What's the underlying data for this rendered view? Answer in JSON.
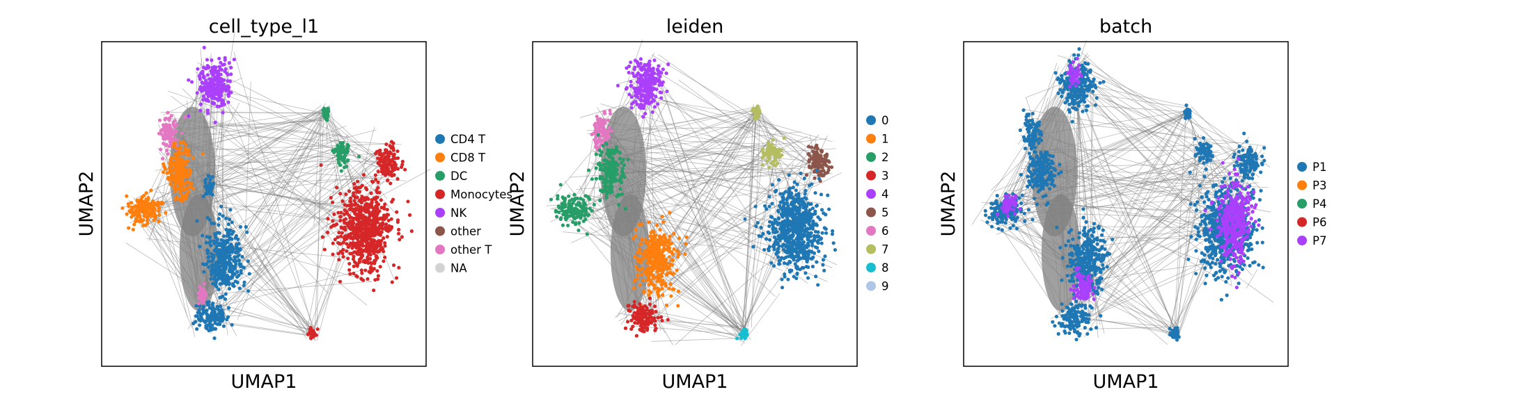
{
  "chart_data": [
    {
      "type": "scatter",
      "title": "cell_type_l1",
      "xlabel": "UMAP1",
      "ylabel": "UMAP2",
      "legend": {
        "position": "right",
        "items": [
          {
            "label": "CD4 T",
            "color": "#1f77b4"
          },
          {
            "label": "CD8 T",
            "color": "#ff7f0e"
          },
          {
            "label": "DC",
            "color": "#279e68"
          },
          {
            "label": "Monocytes",
            "color": "#d62728"
          },
          {
            "label": "NK",
            "color": "#aa40fc"
          },
          {
            "label": "other",
            "color": "#8c564b"
          },
          {
            "label": "other T",
            "color": "#e377c2"
          },
          {
            "label": "NA",
            "color": "#d3d3d3"
          }
        ]
      },
      "clusters": [
        {
          "group": "NK",
          "blobs": [
            [
              0.35,
              0.13,
              0.052,
              0.075
            ]
          ]
        },
        {
          "group": "other T",
          "blobs": [
            [
              0.21,
              0.28,
              0.028,
              0.055
            ]
          ]
        },
        {
          "group": "CD8 T",
          "blobs": [
            [
              0.13,
              0.52,
              0.055,
              0.045
            ],
            [
              0.24,
              0.4,
              0.04,
              0.08
            ]
          ]
        },
        {
          "group": "CD4 T",
          "blobs": [
            [
              0.38,
              0.67,
              0.058,
              0.1
            ],
            [
              0.34,
              0.85,
              0.048,
              0.045
            ],
            [
              0.33,
              0.45,
              0.014,
              0.03
            ]
          ]
        },
        {
          "group": "DC",
          "blobs": [
            [
              0.74,
              0.34,
              0.028,
              0.04
            ],
            [
              0.69,
              0.22,
              0.01,
              0.018
            ]
          ]
        },
        {
          "group": "Monocytes",
          "blobs": [
            [
              0.81,
              0.58,
              0.085,
              0.13
            ],
            [
              0.88,
              0.37,
              0.038,
              0.055
            ],
            [
              0.65,
              0.9,
              0.012,
              0.015
            ]
          ]
        },
        {
          "group": "other T",
          "blobs": [
            [
              0.31,
              0.78,
              0.012,
              0.02
            ]
          ]
        }
      ]
    },
    {
      "type": "scatter",
      "title": "leiden",
      "xlabel": "UMAP1",
      "ylabel": "UMAP2",
      "legend": {
        "position": "right",
        "items": [
          {
            "label": "0",
            "color": "#1f77b4"
          },
          {
            "label": "1",
            "color": "#ff7f0e"
          },
          {
            "label": "2",
            "color": "#279e68"
          },
          {
            "label": "3",
            "color": "#d62728"
          },
          {
            "label": "4",
            "color": "#aa40fc"
          },
          {
            "label": "5",
            "color": "#8c564b"
          },
          {
            "label": "6",
            "color": "#e377c2"
          },
          {
            "label": "7",
            "color": "#b5bd61"
          },
          {
            "label": "8",
            "color": "#17becf"
          },
          {
            "label": "9",
            "color": "#aec7e8"
          }
        ]
      },
      "clusters": [
        {
          "group": "4",
          "blobs": [
            [
              0.35,
              0.13,
              0.052,
              0.075
            ]
          ]
        },
        {
          "group": "6",
          "blobs": [
            [
              0.21,
              0.28,
              0.028,
              0.055
            ]
          ]
        },
        {
          "group": "2",
          "blobs": [
            [
              0.13,
              0.52,
              0.055,
              0.045
            ],
            [
              0.24,
              0.4,
              0.04,
              0.08
            ]
          ]
        },
        {
          "group": "1",
          "blobs": [
            [
              0.38,
              0.67,
              0.058,
              0.1
            ]
          ]
        },
        {
          "group": "3",
          "blobs": [
            [
              0.34,
              0.85,
              0.048,
              0.045
            ]
          ]
        },
        {
          "group": "7",
          "blobs": [
            [
              0.74,
              0.34,
              0.028,
              0.04
            ],
            [
              0.69,
              0.22,
              0.01,
              0.018
            ]
          ]
        },
        {
          "group": "5",
          "blobs": [
            [
              0.88,
              0.37,
              0.038,
              0.055
            ]
          ]
        },
        {
          "group": "0",
          "blobs": [
            [
              0.81,
              0.58,
              0.085,
              0.13
            ]
          ]
        },
        {
          "group": "8",
          "blobs": [
            [
              0.65,
              0.9,
              0.012,
              0.015
            ]
          ]
        }
      ]
    },
    {
      "type": "scatter",
      "title": "batch",
      "xlabel": "UMAP1",
      "ylabel": "UMAP2",
      "legend": {
        "position": "right",
        "items": [
          {
            "label": "P1",
            "color": "#1f77b4"
          },
          {
            "label": "P3",
            "color": "#ff7f0e"
          },
          {
            "label": "P4",
            "color": "#279e68"
          },
          {
            "label": "P6",
            "color": "#d62728"
          },
          {
            "label": "P7",
            "color": "#aa40fc"
          }
        ]
      },
      "clusters": [
        {
          "group": "P1",
          "blobs": [
            [
              0.35,
              0.13,
              0.052,
              0.075
            ],
            [
              0.21,
              0.28,
              0.028,
              0.055
            ],
            [
              0.13,
              0.52,
              0.055,
              0.045
            ],
            [
              0.24,
              0.4,
              0.04,
              0.08
            ],
            [
              0.38,
              0.67,
              0.058,
              0.1
            ],
            [
              0.34,
              0.85,
              0.048,
              0.045
            ],
            [
              0.74,
              0.34,
              0.028,
              0.04
            ],
            [
              0.88,
              0.37,
              0.038,
              0.055
            ],
            [
              0.81,
              0.58,
              0.085,
              0.13
            ],
            [
              0.65,
              0.9,
              0.012,
              0.015
            ],
            [
              0.69,
              0.22,
              0.01,
              0.018
            ]
          ]
        },
        {
          "group": "P7",
          "blobs": [
            [
              0.84,
              0.55,
              0.05,
              0.12
            ],
            [
              0.14,
              0.5,
              0.03,
              0.03
            ],
            [
              0.34,
              0.1,
              0.02,
              0.04
            ],
            [
              0.37,
              0.76,
              0.03,
              0.05
            ]
          ]
        }
      ]
    }
  ]
}
